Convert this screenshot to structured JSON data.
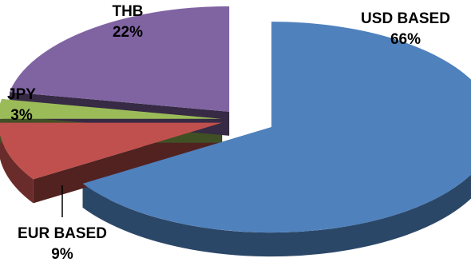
{
  "chart_data": {
    "type": "pie",
    "style": "3d-exploded",
    "slices": [
      {
        "name": "USD BASED",
        "value": 66,
        "label": "66%",
        "color": "#4f81bd"
      },
      {
        "name": "EUR BASED",
        "value": 9,
        "label": "9%",
        "color": "#c0504d"
      },
      {
        "name": "JPY",
        "value": 3,
        "label": "3%",
        "color": "#9bbb59"
      },
      {
        "name": "THB",
        "value": 22,
        "label": "22%",
        "color": "#8064a2"
      }
    ],
    "title": "",
    "legend": "none"
  }
}
